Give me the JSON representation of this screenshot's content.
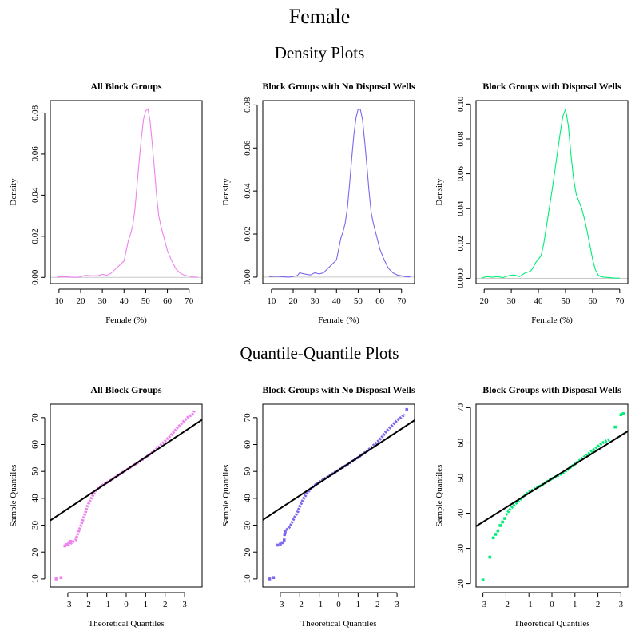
{
  "title": "Female",
  "sections": {
    "density": "Density Plots",
    "qq": "Quantile-Quantile Plots"
  },
  "colors": {
    "all": "#ee82ee",
    "no_wells": "#7b68ee",
    "wells": "#00ee76"
  },
  "chart_data": [
    {
      "type": "line",
      "panel": "density",
      "title": "All Block Groups",
      "xlabel": "Female (%)",
      "ylabel": "Density",
      "xlim": [
        6,
        76
      ],
      "ylim": [
        -0.003,
        0.086
      ],
      "xticks": [
        10,
        20,
        30,
        40,
        50,
        60,
        70
      ],
      "yticks": [
        0.0,
        0.02,
        0.04,
        0.06,
        0.08
      ],
      "ytick_labels": [
        "0.00",
        "0.02",
        "0.04",
        "0.06",
        "0.08"
      ],
      "color": "#ee82ee",
      "baseline": 0,
      "x": [
        9,
        12,
        15,
        18,
        20,
        22,
        25,
        28,
        30,
        32,
        34,
        36,
        38,
        40,
        41,
        42,
        43,
        44,
        45,
        46,
        47,
        48,
        49,
        50,
        51,
        52,
        53,
        54,
        55,
        56,
        57,
        58,
        59,
        60,
        62,
        64,
        66,
        68,
        70,
        72,
        74
      ],
      "y": [
        0.0002,
        0.0004,
        0.0002,
        0.0,
        0.0003,
        0.001,
        0.0008,
        0.0008,
        0.0015,
        0.001,
        0.002,
        0.004,
        0.006,
        0.008,
        0.013,
        0.018,
        0.021,
        0.025,
        0.033,
        0.045,
        0.057,
        0.068,
        0.077,
        0.081,
        0.082,
        0.076,
        0.065,
        0.053,
        0.04,
        0.03,
        0.025,
        0.021,
        0.017,
        0.013,
        0.008,
        0.004,
        0.002,
        0.001,
        0.0006,
        0.0002,
        0.0001
      ]
    },
    {
      "type": "line",
      "panel": "density",
      "title": "Block Groups with No Disposal Wells",
      "xlabel": "Female (%)",
      "ylabel": "Density",
      "xlim": [
        6,
        76
      ],
      "ylim": [
        -0.003,
        0.082
      ],
      "xticks": [
        10,
        20,
        30,
        40,
        50,
        60,
        70
      ],
      "yticks": [
        0.0,
        0.02,
        0.04,
        0.06,
        0.08
      ],
      "ytick_labels": [
        "0.00",
        "0.02",
        "0.04",
        "0.06",
        "0.08"
      ],
      "color": "#7b68ee",
      "baseline": 0,
      "x": [
        9,
        12,
        15,
        18,
        20,
        22,
        23,
        25,
        28,
        30,
        32,
        34,
        36,
        38,
        40,
        41,
        42,
        43,
        44,
        45,
        46,
        47,
        48,
        49,
        50,
        51,
        52,
        53,
        54,
        55,
        56,
        57,
        58,
        59,
        60,
        62,
        64,
        66,
        68,
        70,
        72,
        74
      ],
      "y": [
        0.0002,
        0.0004,
        0.0002,
        0.0,
        0.0003,
        0.0008,
        0.002,
        0.0015,
        0.001,
        0.002,
        0.0015,
        0.002,
        0.004,
        0.006,
        0.008,
        0.013,
        0.018,
        0.021,
        0.025,
        0.032,
        0.043,
        0.055,
        0.066,
        0.074,
        0.078,
        0.078,
        0.073,
        0.063,
        0.052,
        0.04,
        0.03,
        0.025,
        0.021,
        0.017,
        0.013,
        0.008,
        0.004,
        0.002,
        0.001,
        0.0006,
        0.0002,
        0.0001
      ]
    },
    {
      "type": "line",
      "panel": "density",
      "title": "Block Groups with Disposal Wells",
      "xlabel": "Female (%)",
      "ylabel": "Density",
      "xlim": [
        17,
        73
      ],
      "ylim": [
        -0.003,
        0.102
      ],
      "xticks": [
        20,
        30,
        40,
        50,
        60,
        70
      ],
      "yticks": [
        0.0,
        0.02,
        0.04,
        0.06,
        0.08,
        0.1
      ],
      "ytick_labels": [
        "0.000",
        "0.02",
        "0.04",
        "0.06",
        "0.08",
        "0.10"
      ],
      "color": "#00ee76",
      "baseline": 0,
      "x": [
        19,
        21,
        23,
        25,
        27,
        29,
        31,
        33,
        35,
        37,
        38,
        39,
        40,
        41,
        42,
        43,
        44,
        45,
        46,
        47,
        48,
        49,
        50,
        51,
        52,
        53,
        54,
        55,
        56,
        57,
        58,
        59,
        60,
        61,
        62,
        63,
        64,
        66,
        68,
        70
      ],
      "y": [
        0.0003,
        0.001,
        0.0006,
        0.001,
        0.0004,
        0.0015,
        0.002,
        0.001,
        0.003,
        0.004,
        0.006,
        0.009,
        0.011,
        0.013,
        0.02,
        0.03,
        0.04,
        0.05,
        0.061,
        0.072,
        0.083,
        0.093,
        0.097,
        0.088,
        0.071,
        0.057,
        0.048,
        0.044,
        0.04,
        0.034,
        0.027,
        0.019,
        0.011,
        0.005,
        0.002,
        0.001,
        0.0007,
        0.0005,
        0.0002,
        0.0001
      ]
    },
    {
      "type": "scatter",
      "panel": "qq",
      "title": "All Block Groups",
      "xlabel": "Theoretical Quantiles",
      "ylabel": "Sample Quantiles",
      "xlim": [
        -3.9,
        3.9
      ],
      "ylim": [
        7,
        75
      ],
      "xticks": [
        -3,
        -2,
        -1,
        0,
        1,
        2,
        3
      ],
      "yticks": [
        10,
        20,
        30,
        40,
        50,
        60,
        70
      ],
      "color": "#ee82ee",
      "line": {
        "intercept": 50.5,
        "slope": 4.8
      },
      "curve": {
        "x": [
          -3.0,
          -2.6,
          -2.5,
          -2.3,
          -2.1,
          -2.0,
          -1.8,
          -1.6,
          -1.4,
          -1.2,
          -1.0,
          -0.5,
          0.0,
          0.5,
          1.0,
          1.5,
          2.0,
          2.2,
          2.4,
          2.6,
          2.8,
          3.0,
          3.2,
          3.4,
          3.5
        ],
        "y": [
          22.5,
          24.5,
          26.5,
          30.5,
          34.5,
          37.0,
          40.0,
          42.5,
          44.0,
          45.0,
          45.8,
          48.2,
          50.5,
          52.8,
          55.2,
          58.0,
          61.3,
          62.7,
          64.3,
          66.0,
          67.5,
          69.0,
          70.3,
          71.2,
          72.5
        ]
      },
      "points": [
        [
          -3.6,
          10.0
        ],
        [
          -3.35,
          10.5
        ],
        [
          -3.15,
          22.3
        ],
        [
          -3.05,
          22.8
        ],
        [
          -2.95,
          23.5
        ],
        [
          -2.85,
          24.0
        ]
      ]
    },
    {
      "type": "scatter",
      "panel": "qq",
      "title": "Block Groups with No Disposal Wells",
      "xlabel": "Theoretical Quantiles",
      "ylabel": "Sample Quantiles",
      "xlim": [
        -3.9,
        3.9
      ],
      "ylim": [
        7,
        75
      ],
      "xticks": [
        -3,
        -2,
        -1,
        0,
        1,
        2,
        3
      ],
      "yticks": [
        10,
        20,
        30,
        40,
        50,
        60,
        70
      ],
      "color": "#7b68ee",
      "line": {
        "intercept": 50.5,
        "slope": 4.75
      },
      "curve": {
        "x": [
          -2.8,
          -2.5,
          -2.3,
          -2.1,
          -2.0,
          -1.8,
          -1.6,
          -1.4,
          -1.2,
          -1.0,
          -0.5,
          0.0,
          0.5,
          1.0,
          1.5,
          2.0,
          2.2,
          2.4,
          2.6,
          2.8,
          3.0,
          3.2,
          3.4
        ],
        "y": [
          27.5,
          29.5,
          32.5,
          35.0,
          37.0,
          40.0,
          42.2,
          43.8,
          45.0,
          46.0,
          48.3,
          50.5,
          52.8,
          55.2,
          57.8,
          61.0,
          62.5,
          64.5,
          66.0,
          67.5,
          69.0,
          70.0,
          71.2
        ]
      },
      "points": [
        [
          -3.55,
          10.0
        ],
        [
          -3.35,
          10.5
        ],
        [
          -3.15,
          22.6
        ],
        [
          -3.0,
          23.0
        ],
        [
          -2.9,
          23.5
        ],
        [
          -2.8,
          24.5
        ],
        [
          -2.78,
          26.5
        ],
        [
          -2.75,
          27.5
        ],
        [
          3.5,
          73.0
        ]
      ]
    },
    {
      "type": "scatter",
      "panel": "qq",
      "title": "Block Groups with Disposal Wells",
      "xlabel": "Theoretical Quantiles",
      "ylabel": "Sample Quantiles",
      "xlim": [
        -3.3,
        3.3
      ],
      "ylim": [
        19,
        71
      ],
      "xticks": [
        -3,
        -2,
        -1,
        0,
        1,
        2,
        3
      ],
      "yticks": [
        20,
        30,
        40,
        50,
        60,
        70
      ],
      "color": "#00ee76",
      "line": {
        "intercept": 49.8,
        "slope": 4.1
      },
      "curve": {
        "x": [
          -2.0,
          -1.8,
          -1.6,
          -1.4,
          -1.2,
          -1.0,
          -0.5,
          0.0,
          0.5,
          1.0,
          1.5,
          2.0,
          2.2,
          2.5
        ],
        "y": [
          39.5,
          41.3,
          42.6,
          43.8,
          45.0,
          46.0,
          47.8,
          49.8,
          51.5,
          54.0,
          56.5,
          59.0,
          60.0,
          61.0
        ]
      },
      "points": [
        [
          -3.0,
          21.0
        ],
        [
          -2.7,
          27.5
        ],
        [
          -2.55,
          33.0
        ],
        [
          -2.45,
          34.0
        ],
        [
          -2.35,
          35.0
        ],
        [
          -2.25,
          36.5
        ],
        [
          -2.15,
          37.5
        ],
        [
          -2.05,
          38.5
        ],
        [
          2.75,
          64.5
        ],
        [
          3.0,
          68.0
        ],
        [
          3.1,
          68.3
        ]
      ]
    }
  ]
}
